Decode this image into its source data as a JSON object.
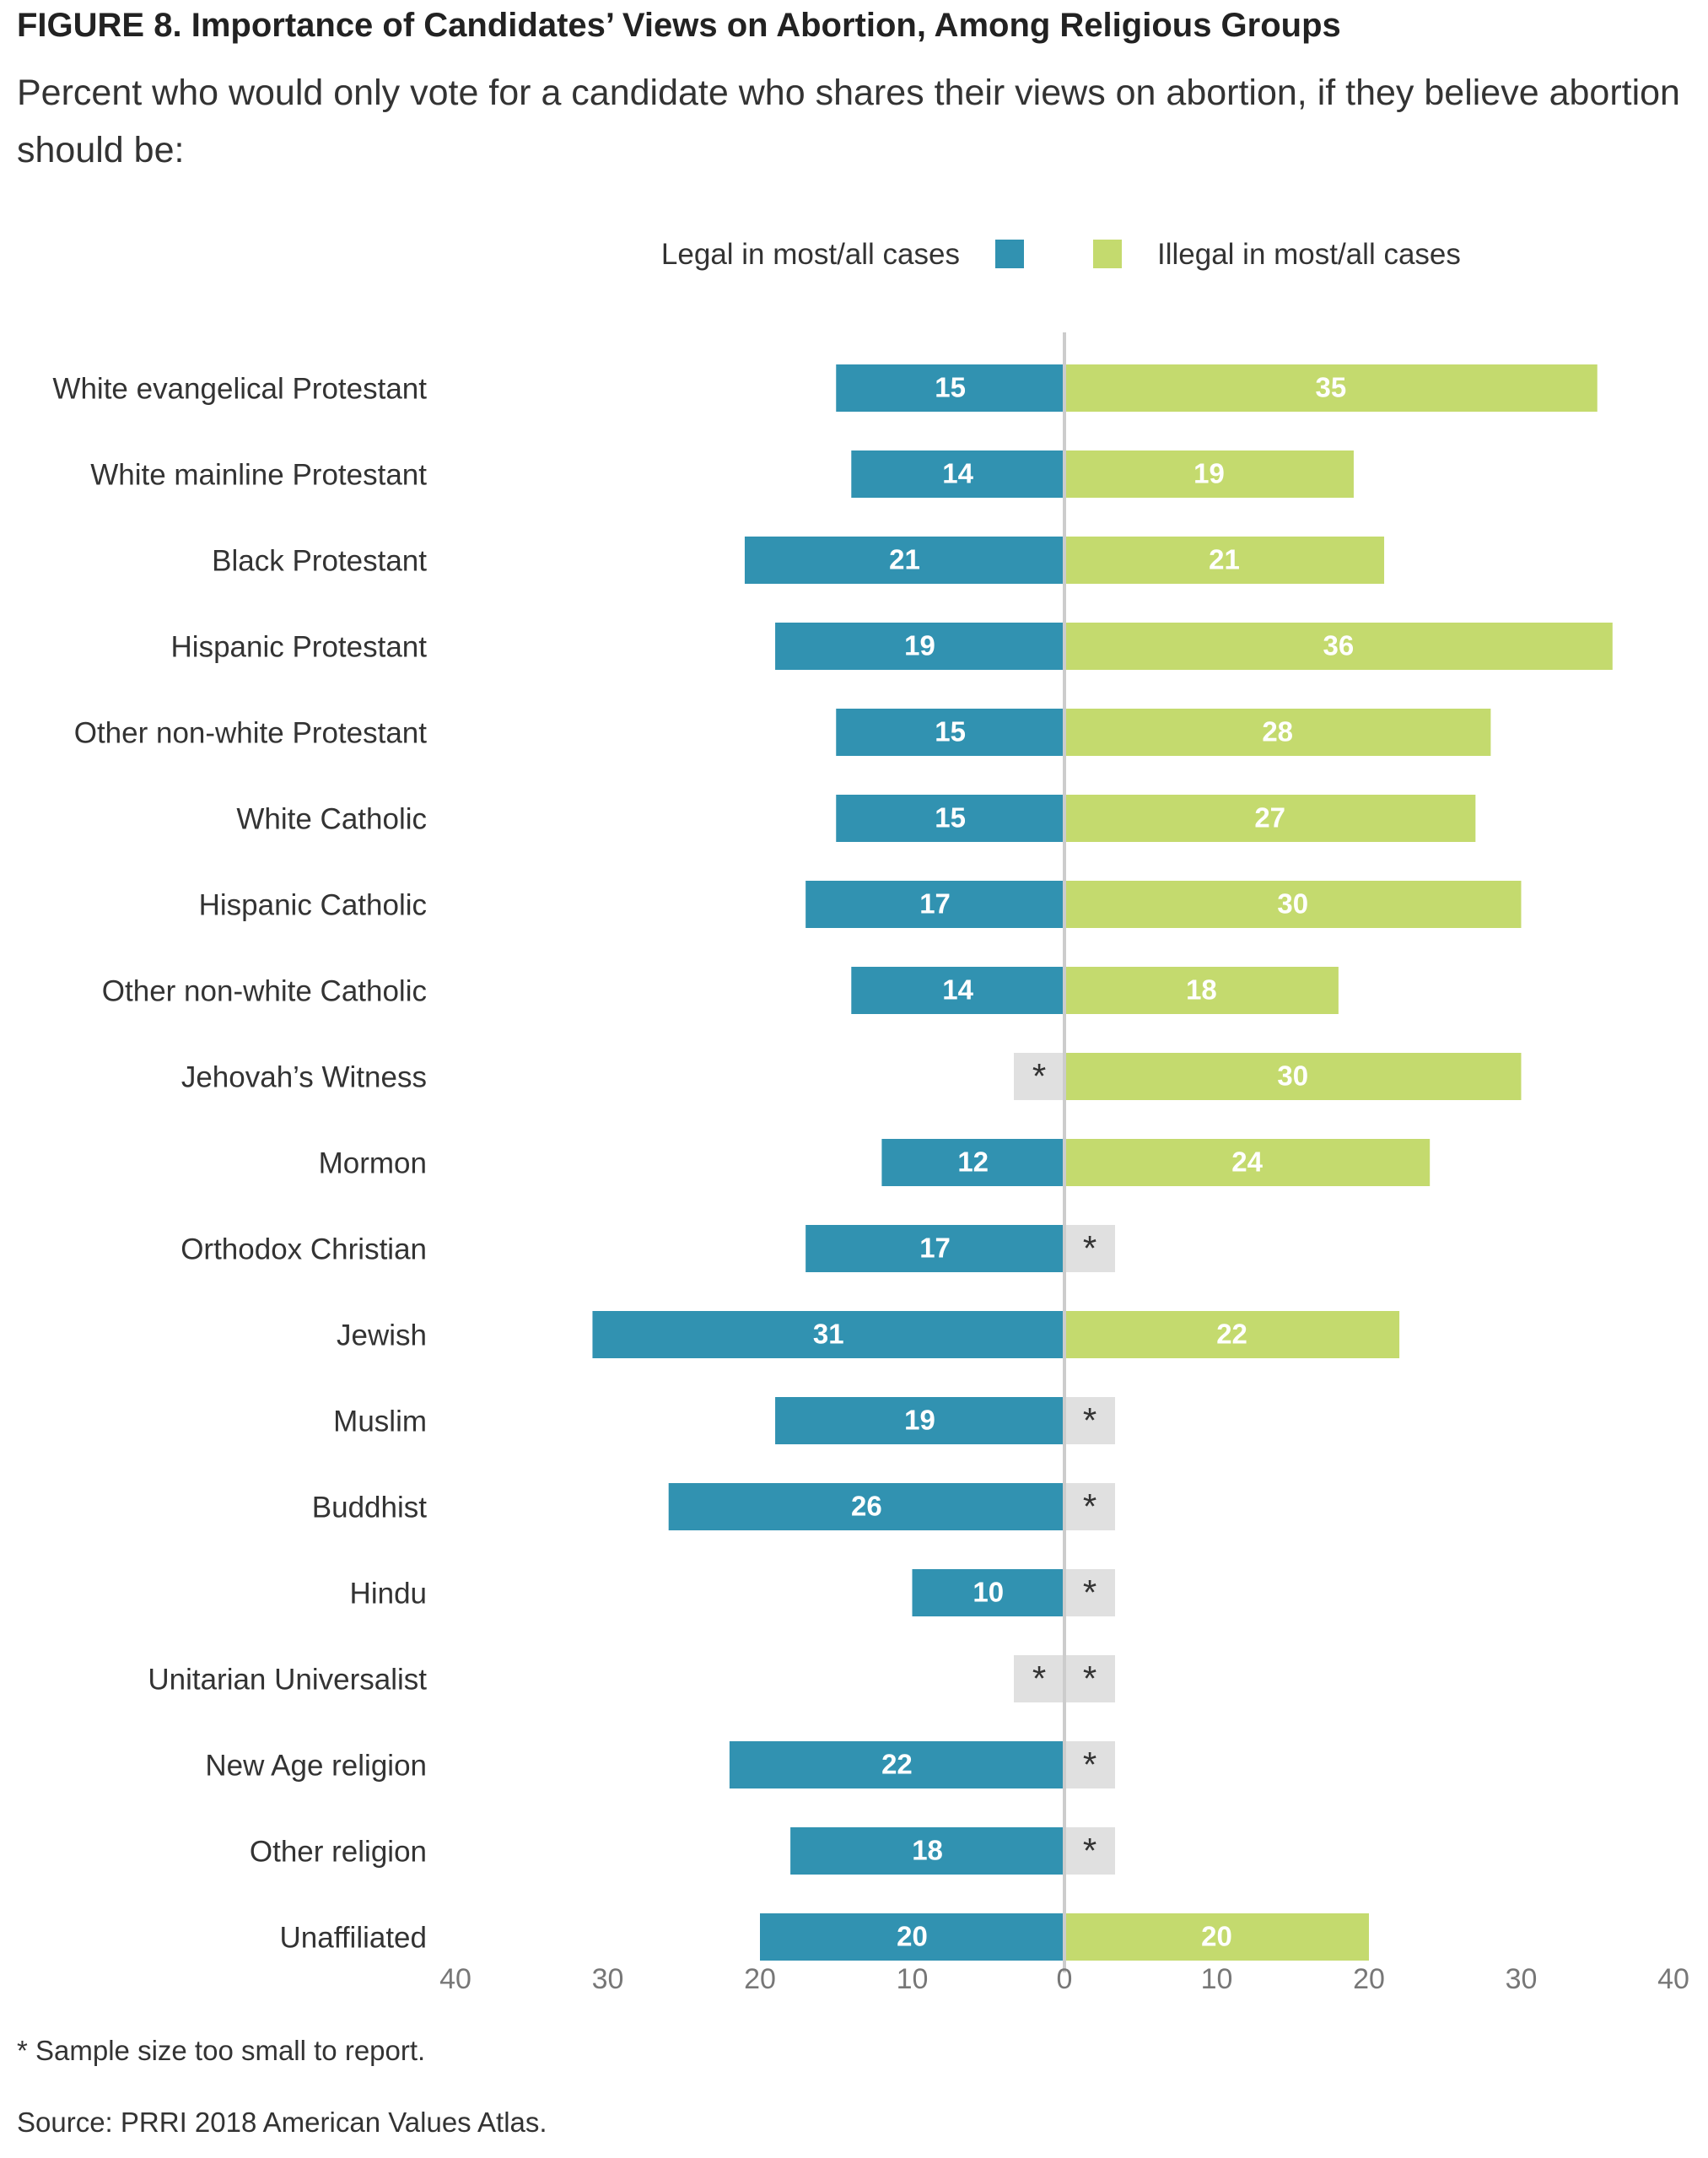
{
  "title": "FIGURE 8.  Importance of Candidates’ Views on Abortion, Among Religious Groups",
  "subtitle": "Percent who would only vote for a candidate who shares their views on abortion, if they believe abortion should be:",
  "footnote": "* Sample size too small to report.",
  "source": "Source: PRRI 2018 American Values Atlas.",
  "colors": {
    "legal": "#3192b1",
    "illegal": "#c4da6e",
    "suppressed": "#e0e0e0",
    "axis": "#cccccc",
    "tick_text": "#777777"
  },
  "chart_data": {
    "type": "bar",
    "orientation": "horizontal-diverging",
    "xlim": [
      -40,
      40
    ],
    "ticks": [
      -40,
      -30,
      -20,
      -10,
      0,
      10,
      20,
      30,
      40
    ],
    "tick_labels": [
      "40",
      "30",
      "20",
      "10",
      "0",
      "10",
      "20",
      "30",
      "40"
    ],
    "legend_position": "top",
    "suppressed_label": "*",
    "categories": [
      "White evangelical Protestant",
      "White mainline Protestant",
      "Black Protestant",
      "Hispanic Protestant",
      "Other non-white Protestant",
      "White Catholic",
      "Hispanic Catholic",
      "Other non-white Catholic",
      "Jehovah’s Witness",
      "Mormon",
      "Orthodox Christian",
      "Jewish",
      "Muslim",
      "Buddhist",
      "Hindu",
      "Unitarian Universalist",
      "New Age religion",
      "Other religion",
      "Unaffiliated"
    ],
    "series": [
      {
        "name": "Legal in most/all cases",
        "side": "left",
        "values": [
          15,
          14,
          21,
          19,
          15,
          15,
          17,
          14,
          null,
          12,
          17,
          31,
          19,
          26,
          10,
          null,
          22,
          18,
          20
        ]
      },
      {
        "name": "Illegal in most/all cases",
        "side": "right",
        "values": [
          35,
          19,
          21,
          36,
          28,
          27,
          30,
          18,
          30,
          24,
          null,
          22,
          null,
          null,
          null,
          null,
          null,
          null,
          20
        ]
      }
    ]
  }
}
